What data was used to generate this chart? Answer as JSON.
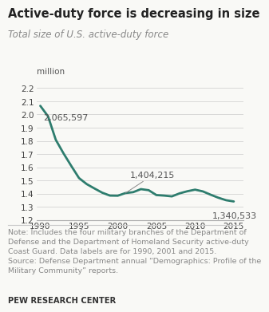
{
  "title": "Active-duty force is decreasing in size",
  "subtitle": "Total size of U.S. active-duty force",
  "ylabel_unit": "million",
  "line_color": "#2e7d6e",
  "background_color": "#f9f9f6",
  "xlim": [
    1989.5,
    2016.2
  ],
  "ylim": [
    1.2,
    2.25
  ],
  "yticks": [
    1.2,
    1.3,
    1.4,
    1.5,
    1.6,
    1.7,
    1.8,
    1.9,
    2.0,
    2.1,
    2.2
  ],
  "xticks": [
    1990,
    1995,
    2000,
    2005,
    2010,
    2015
  ],
  "years": [
    1990,
    1991,
    1992,
    1993,
    1994,
    1995,
    1996,
    1997,
    1998,
    1999,
    2000,
    2001,
    2002,
    2003,
    2004,
    2005,
    2006,
    2007,
    2008,
    2009,
    2010,
    2011,
    2012,
    2013,
    2014,
    2015
  ],
  "values": [
    2.065597,
    1.986,
    1.808,
    1.705,
    1.61,
    1.518,
    1.472,
    1.439,
    1.407,
    1.385,
    1.384,
    1.404215,
    1.411,
    1.434,
    1.426,
    1.389,
    1.385,
    1.379,
    1.402,
    1.418,
    1.43,
    1.417,
    1.392,
    1.369,
    1.35,
    1.340533
  ],
  "note_line1": "Note: Includes the four military branches of the Department of",
  "note_line2": "Defense and the Department of Homeland Security active-duty",
  "note_line3": "Coast Guard. Data labels are for 1990, 2001 and 2015.",
  "note_line4": "Source: Defense Department annual “Demographics: Profile of the",
  "note_line5": "Military Community” reports.",
  "source_org": "PEW RESEARCH CENTER",
  "title_fontsize": 10.5,
  "subtitle_fontsize": 8.5,
  "tick_fontsize": 7.5,
  "annotation_fontsize": 8,
  "note_fontsize": 6.8,
  "source_fontsize": 7.2,
  "ann1_label": "2,065,597",
  "ann1_year": 1990,
  "ann1_value": 2.065597,
  "ann2_label": "1,404,215",
  "ann2_year": 2001,
  "ann2_value": 1.404215,
  "ann3_label": "1,340,533",
  "ann3_year": 2015,
  "ann3_value": 1.340533
}
